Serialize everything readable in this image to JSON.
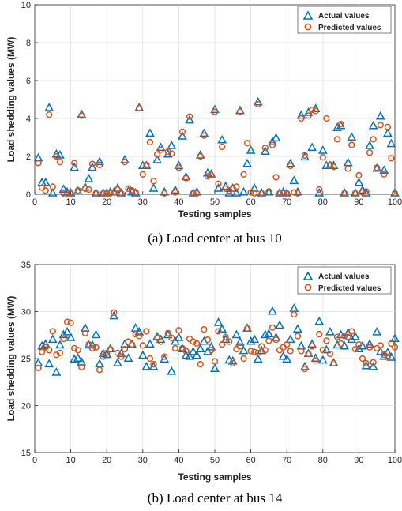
{
  "chart_data": [
    {
      "type": "scatter",
      "caption": "(a) Load center at bus 10",
      "xlabel": "Testing samples",
      "ylabel": "Load shedding values (MW)",
      "xlim": [
        0,
        100
      ],
      "ylim": [
        0,
        10
      ],
      "xticks": [
        0,
        10,
        20,
        30,
        40,
        50,
        60,
        70,
        80,
        90,
        100
      ],
      "yticks": [
        0,
        2,
        4,
        6,
        8,
        10
      ],
      "grid": true,
      "legend_position": "top-right",
      "colors": {
        "actual": "#0072BD",
        "predicted": "#D95319"
      },
      "series": [
        {
          "name": "Actual values",
          "marker": "triangle",
          "x": [
            1,
            2,
            3,
            4,
            5,
            6,
            7,
            8,
            9,
            10,
            11,
            12,
            13,
            14,
            15,
            16,
            17,
            18,
            19,
            20,
            21,
            22,
            23,
            24,
            25,
            26,
            27,
            28,
            29,
            30,
            31,
            32,
            33,
            34,
            35,
            36,
            37,
            38,
            39,
            40,
            41,
            42,
            43,
            44,
            45,
            46,
            47,
            48,
            49,
            50,
            51,
            52,
            53,
            54,
            55,
            56,
            57,
            58,
            59,
            60,
            61,
            62,
            63,
            64,
            65,
            66,
            67,
            68,
            69,
            70,
            71,
            72,
            73,
            74,
            75,
            76,
            77,
            78,
            79,
            80,
            81,
            82,
            83,
            84,
            85,
            86,
            87,
            88,
            89,
            90,
            91,
            92,
            93,
            94,
            95,
            96,
            97,
            98,
            99,
            100
          ],
          "y": [
            1.9,
            0.6,
            0.6,
            4.55,
            0.05,
            2.1,
            2.05,
            0.25,
            0.1,
            0.05,
            1.4,
            0.15,
            4.2,
            0.35,
            0.8,
            1.4,
            0.05,
            1.7,
            0.05,
            0.05,
            0.1,
            0.1,
            0.3,
            0.05,
            1.8,
            0.15,
            0.1,
            0.05,
            4.55,
            1.5,
            1.5,
            3.2,
            0.3,
            1.8,
            2.45,
            0.1,
            2.1,
            2.55,
            0.2,
            1.5,
            3.05,
            0.9,
            3.9,
            0.05,
            0.1,
            2.05,
            3.2,
            1.1,
            1.05,
            4.45,
            0.3,
            2.85,
            0.4,
            0.05,
            0.3,
            0.05,
            4.4,
            0.1,
            1.6,
            2.3,
            0.3,
            4.85,
            0.05,
            2.25,
            0.1,
            2.75,
            2.95,
            0.05,
            0.1,
            0.05,
            1.6,
            0.7,
            0.1,
            4.15,
            1.95,
            4.3,
            2.45,
            4.5,
            0.05,
            2.3,
            1.5,
            1.5,
            1.5,
            3.5,
            3.6,
            0.05,
            1.65,
            3.0,
            0.05,
            0.6,
            0.2,
            0.05,
            2.55,
            3.6,
            1.35,
            4.1,
            1.25,
            3.2,
            2.65,
            0.05
          ]
        },
        {
          "name": "Predicted values",
          "marker": "circle",
          "x": [
            1,
            2,
            3,
            4,
            5,
            6,
            7,
            8,
            9,
            10,
            11,
            12,
            13,
            14,
            15,
            16,
            17,
            18,
            19,
            20,
            21,
            22,
            23,
            24,
            25,
            26,
            27,
            28,
            29,
            30,
            31,
            32,
            33,
            34,
            35,
            36,
            37,
            38,
            39,
            40,
            41,
            42,
            43,
            44,
            45,
            46,
            47,
            48,
            49,
            50,
            51,
            52,
            53,
            54,
            55,
            56,
            57,
            58,
            59,
            60,
            61,
            62,
            63,
            64,
            65,
            66,
            67,
            68,
            69,
            70,
            71,
            72,
            73,
            74,
            75,
            76,
            77,
            78,
            79,
            80,
            81,
            82,
            83,
            84,
            85,
            86,
            87,
            88,
            89,
            90,
            91,
            92,
            93,
            94,
            95,
            96,
            97,
            98,
            99,
            100
          ],
          "y": [
            1.65,
            0.35,
            0.2,
            4.2,
            0.4,
            2.0,
            1.7,
            0.05,
            0.05,
            0.05,
            1.65,
            0.2,
            4.15,
            0.3,
            0.25,
            1.6,
            0.05,
            1.55,
            0.05,
            0.05,
            0.05,
            0.1,
            0.25,
            0.05,
            1.7,
            0.3,
            0.2,
            0.1,
            4.55,
            1.05,
            1.55,
            2.75,
            0.7,
            2.1,
            2.35,
            0.05,
            2.25,
            2.15,
            0.1,
            1.4,
            3.3,
            0.85,
            4.1,
            0.05,
            0.05,
            2.0,
            3.1,
            0.95,
            1.0,
            4.35,
            0.55,
            2.5,
            0.3,
            0.2,
            0.3,
            0.4,
            4.35,
            1.05,
            2.7,
            0.1,
            0.05,
            4.75,
            0.05,
            2.45,
            0.15,
            2.6,
            0.9,
            0.05,
            0.05,
            0.05,
            1.5,
            0.1,
            0.05,
            4.0,
            2.05,
            4.15,
            4.45,
            4.4,
            0.25,
            1.95,
            4.0,
            1.55,
            1.45,
            2.9,
            3.7,
            0.05,
            1.35,
            2.6,
            0.05,
            1.0,
            0.1,
            0.15,
            2.2,
            2.9,
            1.4,
            3.65,
            1.05,
            3.55,
            1.9,
            0.05
          ]
        }
      ]
    },
    {
      "type": "scatter",
      "caption": "(b) Load center at bus 14",
      "xlabel": "Testing samples",
      "ylabel": "Load shedding values (MW)",
      "xlim": [
        0,
        100
      ],
      "ylim": [
        15,
        35
      ],
      "xticks": [
        0,
        10,
        20,
        30,
        40,
        50,
        60,
        70,
        80,
        90,
        100
      ],
      "yticks": [
        15,
        20,
        25,
        30,
        35
      ],
      "grid": true,
      "legend_position": "top-right",
      "colors": {
        "actual": "#0072BD",
        "predicted": "#D95319"
      },
      "series": [
        {
          "name": "Actual values",
          "marker": "triangle",
          "x": [
            1,
            2,
            3,
            4,
            5,
            6,
            7,
            8,
            9,
            10,
            11,
            12,
            13,
            14,
            15,
            16,
            17,
            18,
            19,
            20,
            21,
            22,
            23,
            24,
            25,
            26,
            27,
            28,
            29,
            30,
            31,
            32,
            33,
            34,
            35,
            36,
            37,
            38,
            39,
            40,
            41,
            42,
            43,
            44,
            45,
            46,
            47,
            48,
            49,
            50,
            51,
            52,
            53,
            54,
            55,
            56,
            57,
            58,
            59,
            60,
            61,
            62,
            63,
            64,
            65,
            66,
            67,
            68,
            69,
            70,
            71,
            72,
            73,
            74,
            75,
            76,
            77,
            78,
            79,
            80,
            81,
            82,
            83,
            84,
            85,
            86,
            87,
            88,
            89,
            90,
            91,
            92,
            93,
            94,
            95,
            96,
            97,
            98,
            99,
            100
          ],
          "y": [
            24.5,
            26.3,
            26.5,
            24.4,
            27.0,
            23.5,
            26.4,
            27.5,
            27.8,
            27.2,
            24.9,
            25.0,
            24.6,
            28.2,
            26.4,
            26.4,
            27.5,
            24.4,
            25.5,
            25.4,
            26.0,
            29.5,
            24.5,
            25.5,
            26.5,
            25.0,
            26.5,
            28.2,
            27.8,
            25.3,
            24.1,
            26.5,
            24.1,
            27.3,
            27.0,
            24.9,
            27.5,
            23.6,
            26.8,
            27.2,
            26.0,
            25.3,
            25.2,
            25.7,
            25.3,
            26.0,
            26.8,
            25.7,
            26.2,
            23.9,
            28.8,
            28.1,
            27.0,
            24.8,
            24.7,
            27.5,
            26.7,
            25.8,
            28.2,
            26.8,
            27.0,
            24.9,
            25.8,
            27.5,
            27.6,
            30.0,
            27.2,
            28.5,
            25.2,
            24.9,
            27.0,
            30.3,
            28.1,
            26.3,
            24.1,
            25.5,
            26.5,
            25.0,
            28.9,
            24.8,
            25.9,
            27.8,
            24.5,
            26.4,
            27.5,
            26.3,
            27.7,
            27.0,
            27.3,
            26.0,
            26.3,
            24.2,
            26.5,
            24.1,
            27.8,
            25.7,
            25.2,
            25.6,
            25.1,
            27.1
          ]
        },
        {
          "name": "Predicted values",
          "marker": "circle",
          "x": [
            1,
            2,
            3,
            4,
            5,
            6,
            7,
            8,
            9,
            10,
            11,
            12,
            13,
            14,
            15,
            16,
            17,
            18,
            19,
            20,
            21,
            22,
            23,
            24,
            25,
            26,
            27,
            28,
            29,
            30,
            31,
            32,
            33,
            34,
            35,
            36,
            37,
            38,
            39,
            40,
            41,
            42,
            43,
            44,
            45,
            46,
            47,
            48,
            49,
            50,
            51,
            52,
            53,
            54,
            55,
            56,
            57,
            58,
            59,
            60,
            61,
            62,
            63,
            64,
            65,
            66,
            67,
            68,
            69,
            70,
            71,
            72,
            73,
            74,
            75,
            76,
            77,
            78,
            79,
            80,
            81,
            82,
            83,
            84,
            85,
            86,
            87,
            88,
            89,
            90,
            91,
            92,
            93,
            94,
            95,
            96,
            97,
            98,
            99,
            100
          ],
          "y": [
            24.0,
            25.7,
            26.2,
            25.9,
            27.9,
            25.4,
            25.6,
            27.1,
            28.9,
            28.8,
            26.1,
            25.9,
            24.1,
            27.7,
            26.5,
            26.1,
            26.2,
            23.8,
            25.2,
            25.6,
            26.0,
            29.9,
            25.6,
            25.2,
            26.0,
            26.8,
            26.5,
            27.6,
            27.4,
            26.4,
            27.9,
            25.0,
            24.4,
            27.2,
            26.8,
            25.2,
            27.7,
            27.2,
            26.1,
            28.0,
            26.1,
            25.8,
            27.1,
            26.8,
            26.6,
            24.4,
            28.1,
            27.0,
            25.9,
            24.7,
            27.9,
            26.5,
            27.3,
            26.8,
            24.5,
            26.0,
            26.3,
            25.0,
            28.2,
            25.8,
            25.7,
            25.6,
            26.3,
            25.9,
            26.9,
            28.3,
            27.0,
            25.9,
            26.2,
            26.5,
            25.8,
            29.7,
            27.4,
            25.8,
            23.9,
            25.5,
            26.3,
            24.8,
            27.6,
            25.9,
            26.9,
            25.5,
            24.5,
            27.3,
            26.6,
            27.4,
            27.3,
            27.9,
            26.0,
            26.5,
            25.0,
            24.5,
            26.2,
            24.6,
            26.1,
            26.4,
            25.4,
            25.2,
            26.6,
            26.2
          ]
        }
      ]
    }
  ]
}
